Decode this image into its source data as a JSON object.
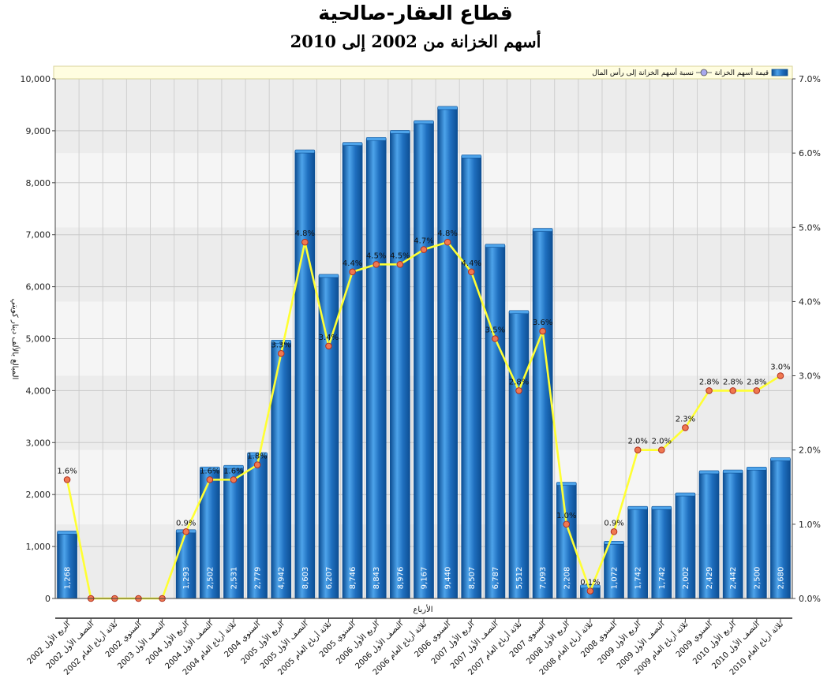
{
  "chart_data": {
    "type": "bar",
    "title": "قطاع العقار-صالحية",
    "subtitle": "أسهم الخزانة من 2002 إلى 2010",
    "xlabel": "الأرباع",
    "ylabel": "المبالغ بالألف دينار كويتي",
    "ylim": [
      0,
      10000
    ],
    "y2lim": [
      0,
      7
    ],
    "y_ticks": [
      "0",
      "1,000",
      "2,000",
      "3,000",
      "4,000",
      "5,000",
      "6,000",
      "7,000",
      "8,000",
      "9,000",
      "10,000"
    ],
    "y2_ticks": [
      "0.0%",
      "1.0%",
      "2.0%",
      "3.0%",
      "4.0%",
      "5.0%",
      "6.0%",
      "7.0%"
    ],
    "grid": true,
    "legend_position": "top",
    "categories": [
      "الربع الأول 2002",
      "النصف الأول 2002",
      "ثلاثة أرباع العام 2002",
      "السنوي 2002",
      "النصف الأول 2003",
      "الربع الأول 2004",
      "النصف الأول 2004",
      "ثلاثة أرباع العام 2004",
      "السنوي 2004",
      "الربع الأول 2005",
      "النصف الأول 2005",
      "ثلاثة أرباع العام 2005",
      "السنوي 2005",
      "الربع الأول 2006",
      "النصف الأول 2006",
      "ثلاثة أرباع العام 2006",
      "السنوي 2006",
      "الربع الأول 2007",
      "النصف الأول 2007",
      "ثلاثة أرباع العام 2007",
      "السنوي 2007",
      "الربع الأول 2008",
      "ثلاثة أرباع العام 2008",
      "السنوي 2008",
      "الربع الأول 2009",
      "النصف الأول 2009",
      "ثلاثة أرباع العام 2009",
      "السنوي 2009",
      "الربع الأول 2010",
      "النصف الأول 2010",
      "ثلاثة أرباع العام 2010"
    ],
    "series": [
      {
        "name": "قيمة أسهم الخزانة",
        "type": "bar",
        "axis": "left",
        "color": "#1f6fbf",
        "values": [
          1268,
          0,
          0,
          0,
          0,
          1293,
          2502,
          2531,
          2779,
          4942,
          8603,
          6207,
          8746,
          8843,
          8976,
          9167,
          9440,
          8507,
          6787,
          5512,
          7093,
          2208,
          230,
          1072,
          1742,
          1742,
          2002,
          2429,
          2442,
          2500,
          2680
        ],
        "labels": [
          "1,268",
          "",
          "",
          "",
          "",
          "1,293",
          "2,502",
          "2,531",
          "2,779",
          "4,942",
          "8,603",
          "6,207",
          "8,746",
          "8,843",
          "8,976",
          "9,167",
          "9,440",
          "8,507",
          "6,787",
          "5,512",
          "7,093",
          "2,208",
          "",
          "1,072",
          "1,742",
          "1,742",
          "2,002",
          "2,429",
          "2,442",
          "2,500",
          "2,680"
        ]
      },
      {
        "name": "نسبة أسهم الخزانة إلى رأس المال",
        "type": "line",
        "axis": "right",
        "color": "#ffff33",
        "values": [
          1.6,
          0,
          0,
          0,
          0,
          0.9,
          1.6,
          1.6,
          1.8,
          3.3,
          4.8,
          3.4,
          4.4,
          4.5,
          4.5,
          4.7,
          4.8,
          4.4,
          3.5,
          2.8,
          3.6,
          1.0,
          0.1,
          0.9,
          2.0,
          2.0,
          2.3,
          2.8,
          2.8,
          2.8,
          3.0
        ],
        "labels": [
          "1.6%",
          "",
          "",
          "",
          "",
          "0.9%",
          "1.6%",
          "1.6%",
          "1.8%",
          "3.3%",
          "4.8%",
          "3.4%",
          "4.4%",
          "4.5%",
          "4.5%",
          "4.7%",
          "4.8%",
          "4.4%",
          "3.5%",
          "2.8%",
          "3.6%",
          "1.0%",
          "0.1%",
          "0.9%",
          "2.0%",
          "2.0%",
          "2.3%",
          "2.8%",
          "2.8%",
          "2.8%",
          "3.0%"
        ]
      }
    ]
  },
  "colors": {
    "bar": "#1f6fbf",
    "bar_dark": "#0d4f94",
    "bar_light": "#4da3ea",
    "line": "#ffff33",
    "marker_fill": "#f07850",
    "marker_stroke": "#b03020",
    "legend_bg": "#fffde0",
    "band_gray": "#e6e6e6",
    "band_light": "#f1f1f1"
  }
}
